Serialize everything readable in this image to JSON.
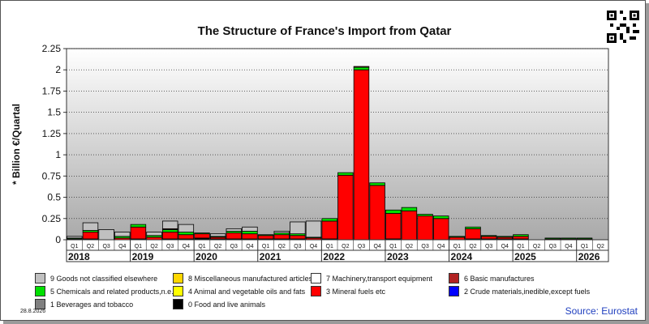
{
  "title": "The Structure of France's Import from Qatar",
  "source": "Source: Eurostat",
  "date": "28.8.2026",
  "chart_data": {
    "type": "bar",
    "stacked": true,
    "title": "The Structure of France's Import from Qatar",
    "ylabel": "* Billion €/Quartal",
    "ylim": [
      0,
      2.25
    ],
    "yticks": [
      "0",
      "0.25",
      "0.5",
      "0.75",
      "1",
      "1.25",
      "1.5",
      "1.75",
      "2",
      "2.25"
    ],
    "grid": true,
    "legend_position": "bottom",
    "categories": [
      "Q1",
      "Q2",
      "Q3",
      "Q4",
      "Q1",
      "Q2",
      "Q3",
      "Q4",
      "Q1",
      "Q2",
      "Q3",
      "Q4",
      "Q1",
      "Q2",
      "Q3",
      "Q4",
      "Q1",
      "Q2",
      "Q3",
      "Q4",
      "Q1",
      "Q2",
      "Q3",
      "Q4",
      "Q1",
      "Q2",
      "Q3",
      "Q4",
      "Q1",
      "Q2",
      "Q3",
      "Q4",
      "Q1",
      "Q2"
    ],
    "years": [
      "2018",
      "2019",
      "2020",
      "2021",
      "2022",
      "2023",
      "2024",
      "2025",
      "2026"
    ],
    "series": [
      {
        "name": "0 Food and live animals",
        "color": "#000000",
        "values": [
          0.01,
          0.01,
          0.0,
          0.0,
          0.01,
          0.0,
          0.01,
          0.01,
          0.02,
          0.01,
          0.01,
          0.01,
          0.01,
          0.01,
          0.01,
          0.0,
          0.01,
          0.0,
          0.0,
          0.0,
          0.01,
          0.0,
          0.0,
          0.0,
          0.0,
          0.01,
          0.01,
          0.01,
          0.01,
          0.0,
          0.0,
          0.0,
          0.0,
          0.0
        ]
      },
      {
        "name": "1 Beverages and tobacco",
        "color": "#808080",
        "values": [
          0,
          0,
          0,
          0,
          0,
          0,
          0,
          0,
          0,
          0,
          0,
          0,
          0,
          0,
          0,
          0,
          0,
          0,
          0,
          0,
          0,
          0,
          0,
          0,
          0,
          0,
          0,
          0,
          0,
          0,
          0,
          0,
          0,
          0
        ]
      },
      {
        "name": "2 Crude materials,inedible,except fuels",
        "color": "#0000ff",
        "values": [
          0,
          0,
          0,
          0,
          0,
          0,
          0,
          0,
          0,
          0,
          0,
          0,
          0,
          0,
          0,
          0,
          0,
          0,
          0,
          0,
          0,
          0,
          0,
          0,
          0,
          0,
          0,
          0,
          0,
          0,
          0,
          0,
          0,
          0
        ]
      },
      {
        "name": "3 Mineral fuels etc",
        "color": "#ff0000",
        "values": [
          0.0,
          0.08,
          0.0,
          0.02,
          0.14,
          0.03,
          0.08,
          0.05,
          0.05,
          0.02,
          0.07,
          0.06,
          0.04,
          0.05,
          0.04,
          0.02,
          0.21,
          0.76,
          2.0,
          0.64,
          0.3,
          0.34,
          0.28,
          0.25,
          0.03,
          0.12,
          0.03,
          0.02,
          0.03,
          0.0,
          0.01,
          0.01,
          0.01,
          0.0
        ]
      },
      {
        "name": "4 Animal and vegetable oils and fats",
        "color": "#ffff00",
        "values": [
          0,
          0,
          0,
          0,
          0,
          0,
          0,
          0,
          0,
          0,
          0,
          0,
          0,
          0,
          0,
          0,
          0,
          0,
          0,
          0,
          0,
          0,
          0,
          0,
          0,
          0,
          0,
          0,
          0,
          0,
          0,
          0,
          0,
          0
        ]
      },
      {
        "name": "5 Chemicals and related products,n.e.s.",
        "color": "#00e000",
        "values": [
          0.01,
          0.02,
          0.0,
          0.02,
          0.03,
          0.02,
          0.03,
          0.03,
          0.01,
          0.01,
          0.02,
          0.03,
          0.01,
          0.02,
          0.02,
          0.01,
          0.03,
          0.03,
          0.03,
          0.03,
          0.04,
          0.04,
          0.02,
          0.03,
          0.01,
          0.02,
          0.01,
          0.01,
          0.02,
          0.0,
          0.01,
          0.01,
          0.01,
          0.0
        ]
      },
      {
        "name": "6 Basic manufactures",
        "color": "#b22222",
        "values": [
          0.0,
          0.0,
          0.0,
          0.0,
          0.0,
          0.0,
          0.01,
          0.0,
          0.0,
          0.0,
          0.0,
          0.0,
          0.0,
          0.0,
          0.0,
          0.0,
          0.0,
          0.0,
          0.01,
          0.0,
          0.0,
          0.0,
          0.0,
          0.0,
          0.0,
          0.0,
          0.0,
          0.0,
          0.0,
          0.0,
          0.0,
          0.0,
          0.0,
          0.0
        ]
      },
      {
        "name": "7 Machinery,transport equipment",
        "color": "#ffffff",
        "values": [
          0,
          0,
          0,
          0,
          0,
          0,
          0,
          0,
          0,
          0,
          0,
          0,
          0,
          0,
          0,
          0,
          0,
          0,
          0,
          0,
          0,
          0,
          0,
          0,
          0,
          0,
          0,
          0,
          0,
          0,
          0,
          0,
          0,
          0
        ]
      },
      {
        "name": "8 Miscellaneous manufactured articles",
        "color": "#ffd700",
        "values": [
          0,
          0,
          0,
          0,
          0,
          0,
          0,
          0,
          0,
          0,
          0,
          0,
          0,
          0,
          0,
          0,
          0,
          0,
          0,
          0,
          0,
          0,
          0,
          0,
          0,
          0,
          0,
          0,
          0,
          0,
          0,
          0,
          0,
          0
        ]
      },
      {
        "name": "9 Goods not classified elsewhere",
        "color": "#c0c0c0",
        "values": [
          0.02,
          0.09,
          0.12,
          0.05,
          0.0,
          0.04,
          0.09,
          0.09,
          0.0,
          0.03,
          0.03,
          0.05,
          0.0,
          0.02,
          0.14,
          0.19,
          0.0,
          0.0,
          0.0,
          0.0,
          0.0,
          0.0,
          0.0,
          0.0,
          0.0,
          0.0,
          0.0,
          0.0,
          0.0,
          0.0,
          0.0,
          0.0,
          0.0,
          0.0
        ]
      }
    ]
  }
}
